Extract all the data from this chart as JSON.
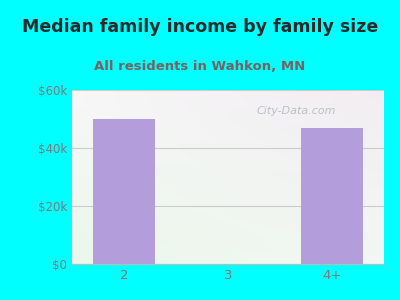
{
  "title": "Median family income by family size",
  "subtitle": "All residents in Wahkon, MN",
  "categories": [
    "2",
    "3",
    "4+"
  ],
  "values": [
    50000,
    0,
    47000
  ],
  "bar_color": "#b39ddb",
  "background_color": "#00ffff",
  "title_color": "#2a2a2a",
  "subtitle_color": "#7a6060",
  "axis_tick_color": "#7a7a7a",
  "ylim": [
    0,
    60000
  ],
  "yticks": [
    0,
    20000,
    40000,
    60000
  ],
  "ytick_labels": [
    "$0",
    "$20k",
    "$40k",
    "$60k"
  ],
  "title_fontsize": 12.5,
  "subtitle_fontsize": 9.5,
  "watermark": "City-Data.com",
  "grid_color": "#cccccc"
}
